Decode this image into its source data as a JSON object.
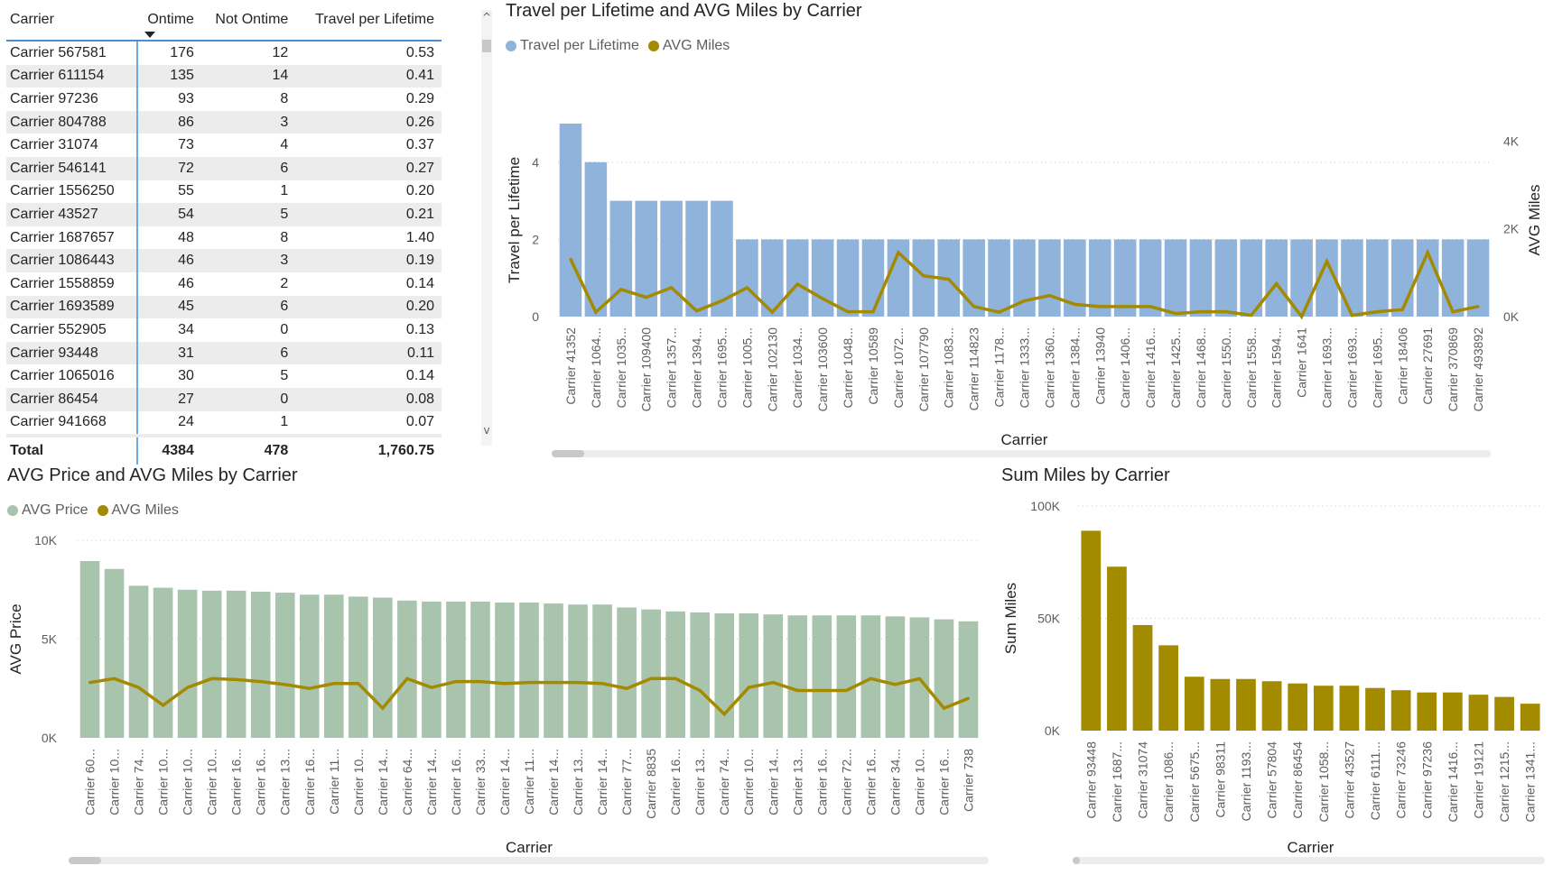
{
  "table": {
    "columns": [
      "Carrier",
      "Ontime",
      "Not Ontime",
      "Travel per Lifetime"
    ],
    "sort_column": "Ontime",
    "rows": [
      [
        "Carrier 567581",
        "176",
        "12",
        "0.53"
      ],
      [
        "Carrier 611154",
        "135",
        "14",
        "0.41"
      ],
      [
        "Carrier 97236",
        "93",
        "8",
        "0.29"
      ],
      [
        "Carrier 804788",
        "86",
        "3",
        "0.26"
      ],
      [
        "Carrier 31074",
        "73",
        "4",
        "0.37"
      ],
      [
        "Carrier 546141",
        "72",
        "6",
        "0.27"
      ],
      [
        "Carrier 1556250",
        "55",
        "1",
        "0.20"
      ],
      [
        "Carrier 43527",
        "54",
        "5",
        "0.21"
      ],
      [
        "Carrier 1687657",
        "48",
        "8",
        "1.40"
      ],
      [
        "Carrier 1086443",
        "46",
        "3",
        "0.19"
      ],
      [
        "Carrier 1558859",
        "46",
        "2",
        "0.14"
      ],
      [
        "Carrier 1693589",
        "45",
        "6",
        "0.20"
      ],
      [
        "Carrier 552905",
        "34",
        "0",
        "0.13"
      ],
      [
        "Carrier 93448",
        "31",
        "6",
        "0.11"
      ],
      [
        "Carrier 1065016",
        "30",
        "5",
        "0.14"
      ],
      [
        "Carrier 86454",
        "27",
        "0",
        "0.08"
      ],
      [
        "Carrier 941668",
        "24",
        "1",
        "0.07"
      ]
    ],
    "total": [
      "Total",
      "4384",
      "478",
      "1,760.75"
    ],
    "scroll_up": "^",
    "scroll_down": "v"
  },
  "chart_data": [
    {
      "type": "bar+line",
      "title": "Travel per Lifetime and AVG Miles by Carrier",
      "xlabel": "Carrier",
      "ylabel": "Travel per Lifetime",
      "y2label": "AVG Miles",
      "legend": [
        "Travel per Lifetime",
        "AVG Miles"
      ],
      "legend_position": "top-left",
      "colors": {
        "bar": "#8fb3da",
        "line": "#a38a00"
      },
      "ylim": [
        0,
        5
      ],
      "yticks": [
        "0",
        "2",
        "4"
      ],
      "y2lim": [
        0,
        4400
      ],
      "y2ticks": [
        "0K",
        "2K",
        "4K"
      ],
      "categories": [
        "Carrier 41352",
        "Carrier 1064...",
        "Carrier 1035...",
        "Carrier 109400",
        "Carrier 1357...",
        "Carrier 1394...",
        "Carrier 1695...",
        "Carrier 1005...",
        "Carrier 102130",
        "Carrier 1034...",
        "Carrier 103600",
        "Carrier 1048...",
        "Carrier 10589",
        "Carrier 1072...",
        "Carrier 107790",
        "Carrier 1083...",
        "Carrier 114823",
        "Carrier 1178...",
        "Carrier 1333...",
        "Carrier 1360...",
        "Carrier 1384...",
        "Carrier 13940",
        "Carrier 1406...",
        "Carrier 1416...",
        "Carrier 1425...",
        "Carrier 1468...",
        "Carrier 1550...",
        "Carrier 1558...",
        "Carrier 1594...",
        "Carrier 1641",
        "Carrier 1693...",
        "Carrier 1693...",
        "Carrier 1695...",
        "Carrier 18406",
        "Carrier 27691",
        "Carrier 370869",
        "Carrier 493892"
      ],
      "series": [
        {
          "name": "Travel per Lifetime",
          "kind": "bar",
          "values": [
            5,
            4,
            3,
            3,
            3,
            3,
            3,
            2,
            2,
            2,
            2,
            2,
            2,
            2,
            2,
            2,
            2,
            2,
            2,
            2,
            2,
            2,
            2,
            2,
            2,
            2,
            2,
            2,
            2,
            2,
            2,
            2,
            2,
            2,
            2,
            2,
            2
          ]
        },
        {
          "name": "AVG Miles",
          "kind": "line",
          "axis": "right",
          "values": [
            1310,
            100,
            620,
            440,
            660,
            130,
            360,
            660,
            100,
            740,
            410,
            110,
            110,
            1460,
            930,
            850,
            230,
            100,
            360,
            480,
            280,
            230,
            230,
            230,
            70,
            110,
            110,
            30,
            750,
            0,
            1260,
            30,
            110,
            160,
            1460,
            110,
            230
          ]
        }
      ]
    },
    {
      "type": "bar+line",
      "title": "AVG Price and AVG Miles by Carrier",
      "xlabel": "Carrier",
      "ylabel": "AVG Price",
      "legend": [
        "AVG Price",
        "AVG Miles"
      ],
      "legend_position": "top-left",
      "colors": {
        "bar": "#a9c4ad",
        "line": "#a38a00"
      },
      "ylim": [
        0,
        10000
      ],
      "yticks": [
        "0K",
        "5K",
        "10K"
      ],
      "categories": [
        "Carrier 60...",
        "Carrier 10...",
        "Carrier 74...",
        "Carrier 10...",
        "Carrier 10...",
        "Carrier 10...",
        "Carrier 16...",
        "Carrier 16...",
        "Carrier 13...",
        "Carrier 16...",
        "Carrier 11...",
        "Carrier 10...",
        "Carrier 14...",
        "Carrier 64...",
        "Carrier 14...",
        "Carrier 16...",
        "Carrier 33...",
        "Carrier 14...",
        "Carrier 11...",
        "Carrier 14...",
        "Carrier 13...",
        "Carrier 14...",
        "Carrier 77...",
        "Carrier 8835",
        "Carrier 16...",
        "Carrier 13...",
        "Carrier 74...",
        "Carrier 10...",
        "Carrier 14...",
        "Carrier 13...",
        "Carrier 16...",
        "Carrier 72...",
        "Carrier 16...",
        "Carrier 34...",
        "Carrier 10...",
        "Carrier 16...",
        "Carrier 738"
      ],
      "series": [
        {
          "name": "AVG Price",
          "kind": "bar",
          "values": [
            8950,
            8550,
            7700,
            7600,
            7500,
            7450,
            7450,
            7400,
            7350,
            7250,
            7250,
            7150,
            7100,
            6950,
            6900,
            6900,
            6900,
            6850,
            6850,
            6800,
            6750,
            6750,
            6600,
            6500,
            6400,
            6350,
            6300,
            6300,
            6250,
            6200,
            6200,
            6200,
            6200,
            6150,
            6100,
            6000,
            5900
          ]
        },
        {
          "name": "AVG Miles",
          "kind": "line",
          "values": [
            2800,
            3000,
            2550,
            1650,
            2550,
            3000,
            2950,
            2850,
            2700,
            2500,
            2750,
            2750,
            1500,
            3000,
            2550,
            2850,
            2850,
            2750,
            2800,
            2800,
            2800,
            2750,
            2500,
            3000,
            3000,
            2400,
            1200,
            2550,
            2800,
            2400,
            2400,
            2400,
            3000,
            2700,
            3000,
            1500,
            2000
          ]
        }
      ]
    },
    {
      "type": "bar",
      "title": "Sum Miles by Carrier",
      "xlabel": "Carrier",
      "ylabel": "Sum Miles",
      "colors": {
        "bar": "#a38b00"
      },
      "ylim": [
        0,
        100000
      ],
      "yticks": [
        "0K",
        "50K",
        "100K"
      ],
      "categories": [
        "Carrier 93448",
        "Carrier 1687...",
        "Carrier 31074",
        "Carrier 1086...",
        "Carrier 5675...",
        "Carrier 98311",
        "Carrier 1193...",
        "Carrier 57804",
        "Carrier 86454",
        "Carrier 1058...",
        "Carrier 43527",
        "Carrier 6111...",
        "Carrier 73246",
        "Carrier 97236",
        "Carrier 1416...",
        "Carrier 19121",
        "Carrier 1215...",
        "Carrier 1341..."
      ],
      "series": [
        {
          "name": "Sum Miles",
          "kind": "bar",
          "values": [
            89000,
            73000,
            47000,
            38000,
            24000,
            23000,
            23000,
            22000,
            21000,
            20000,
            20000,
            19000,
            18000,
            17000,
            17000,
            16000,
            15000,
            12000
          ]
        }
      ]
    }
  ]
}
